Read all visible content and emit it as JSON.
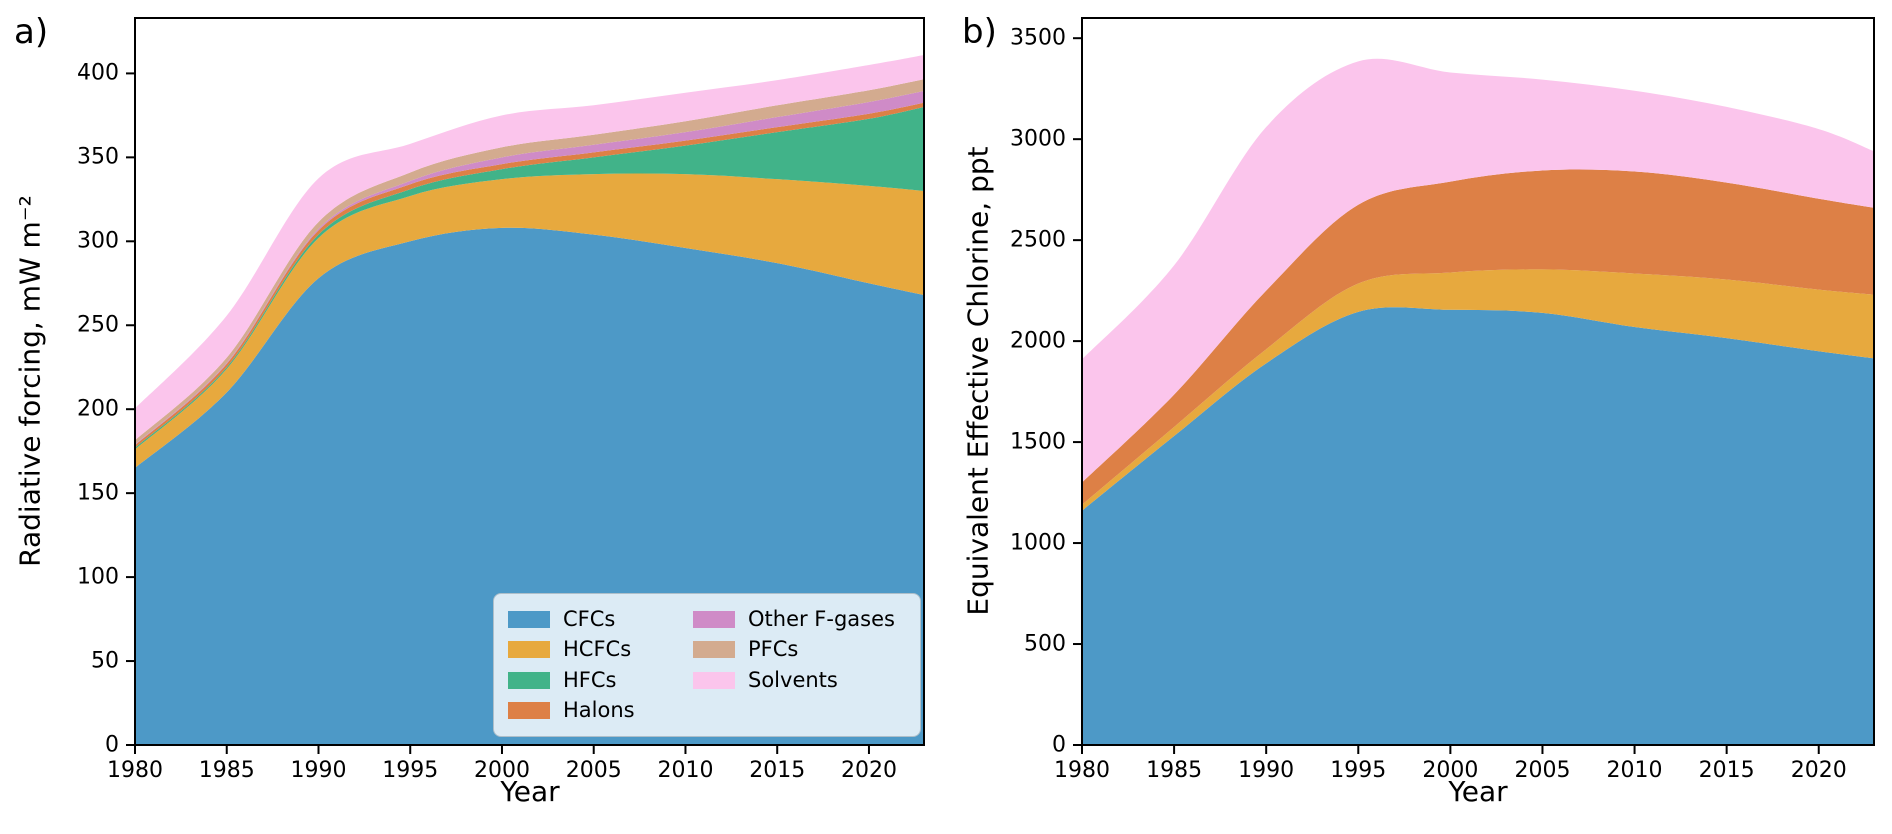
{
  "figure": {
    "type": "two-panel stacked area figure",
    "background": "#ffffff",
    "panels": [
      {
        "label": "a)"
      },
      {
        "label": "b)"
      }
    ]
  },
  "legend": {
    "location": "inside panel a, lower right",
    "items": [
      {
        "label": "CFCs",
        "color": "#4d99c7"
      },
      {
        "label": "HCFCs",
        "color": "#e7a93e"
      },
      {
        "label": "HFCs",
        "color": "#41b389"
      },
      {
        "label": "Halons",
        "color": "#dd8046"
      },
      {
        "label": "Other F-gases",
        "color": "#cf8bc7"
      },
      {
        "label": "PFCs",
        "color": "#d3ab8f"
      },
      {
        "label": "Solvents",
        "color": "#fbc5ec"
      }
    ]
  },
  "chart_data": [
    {
      "type": "area",
      "stacked": true,
      "panel_label": "a)",
      "xlabel": "Year",
      "ylabel": "Radiative forcing, mW m⁻²",
      "x": [
        1980,
        1985,
        1990,
        1995,
        2000,
        2005,
        2010,
        2015,
        2020,
        2023
      ],
      "xticks": [
        1980,
        1985,
        1990,
        1995,
        2000,
        2005,
        2010,
        2015,
        2020
      ],
      "yticks": [
        0,
        50,
        100,
        150,
        200,
        250,
        300,
        350,
        400
      ],
      "xlim": [
        1980,
        2023
      ],
      "ylim": [
        0,
        433
      ],
      "grid": false,
      "series": [
        {
          "name": "CFCs",
          "color": "#4d99c7",
          "values": [
            165,
            210,
            278,
            300,
            308,
            304,
            296,
            287,
            275,
            268
          ]
        },
        {
          "name": "HCFCs",
          "color": "#e7a93e",
          "values": [
            11,
            14,
            24,
            27,
            29,
            36,
            44,
            50,
            58,
            62
          ]
        },
        {
          "name": "HFCs",
          "color": "#41b389",
          "values": [
            1,
            1,
            2,
            4,
            6,
            10,
            17,
            28,
            40,
            50
          ]
        },
        {
          "name": "Halons",
          "color": "#dd8046",
          "values": [
            1.5,
            2,
            2.5,
            3,
            3,
            3,
            3,
            3,
            3,
            2.5
          ]
        },
        {
          "name": "Other F-gases",
          "color": "#cf8bc7",
          "values": [
            0.5,
            0.7,
            1,
            2,
            4,
            4.5,
            5,
            6,
            7,
            7
          ]
        },
        {
          "name": "PFCs",
          "color": "#d3ab8f",
          "values": [
            2.5,
            3,
            4,
            5,
            6,
            6,
            6.5,
            7,
            7,
            7
          ]
        },
        {
          "name": "Solvents",
          "color": "#fbc5ec",
          "values": [
            19,
            25,
            26,
            17,
            19,
            17.5,
            17,
            15,
            15,
            14.5
          ]
        }
      ]
    },
    {
      "type": "area",
      "stacked": true,
      "panel_label": "b)",
      "xlabel": "Year",
      "ylabel": "Equivalent Effective Chlorine, ppt",
      "x": [
        1980,
        1985,
        1990,
        1995,
        2000,
        2005,
        2010,
        2015,
        2020,
        2023
      ],
      "xticks": [
        1980,
        1985,
        1990,
        1995,
        2000,
        2005,
        2010,
        2015,
        2020
      ],
      "yticks": [
        0,
        500,
        1000,
        1500,
        2000,
        2500,
        3000,
        3500
      ],
      "xlim": [
        1980,
        2023
      ],
      "ylim": [
        0,
        3600
      ],
      "grid": false,
      "series": [
        {
          "name": "CFCs",
          "color": "#4d99c7",
          "values": [
            1160,
            1530,
            1890,
            2145,
            2155,
            2140,
            2070,
            2015,
            1950,
            1915
          ]
        },
        {
          "name": "HCFCs",
          "color": "#e7a93e",
          "values": [
            30,
            45,
            70,
            140,
            185,
            215,
            265,
            290,
            305,
            315
          ]
        },
        {
          "name": "Halons",
          "color": "#dd8046",
          "values": [
            110,
            160,
            290,
            390,
            450,
            490,
            505,
            480,
            450,
            430
          ]
        },
        {
          "name": "Solvents",
          "color": "#fbc5ec",
          "values": [
            610,
            640,
            810,
            710,
            540,
            450,
            400,
            375,
            345,
            280
          ]
        }
      ]
    }
  ]
}
